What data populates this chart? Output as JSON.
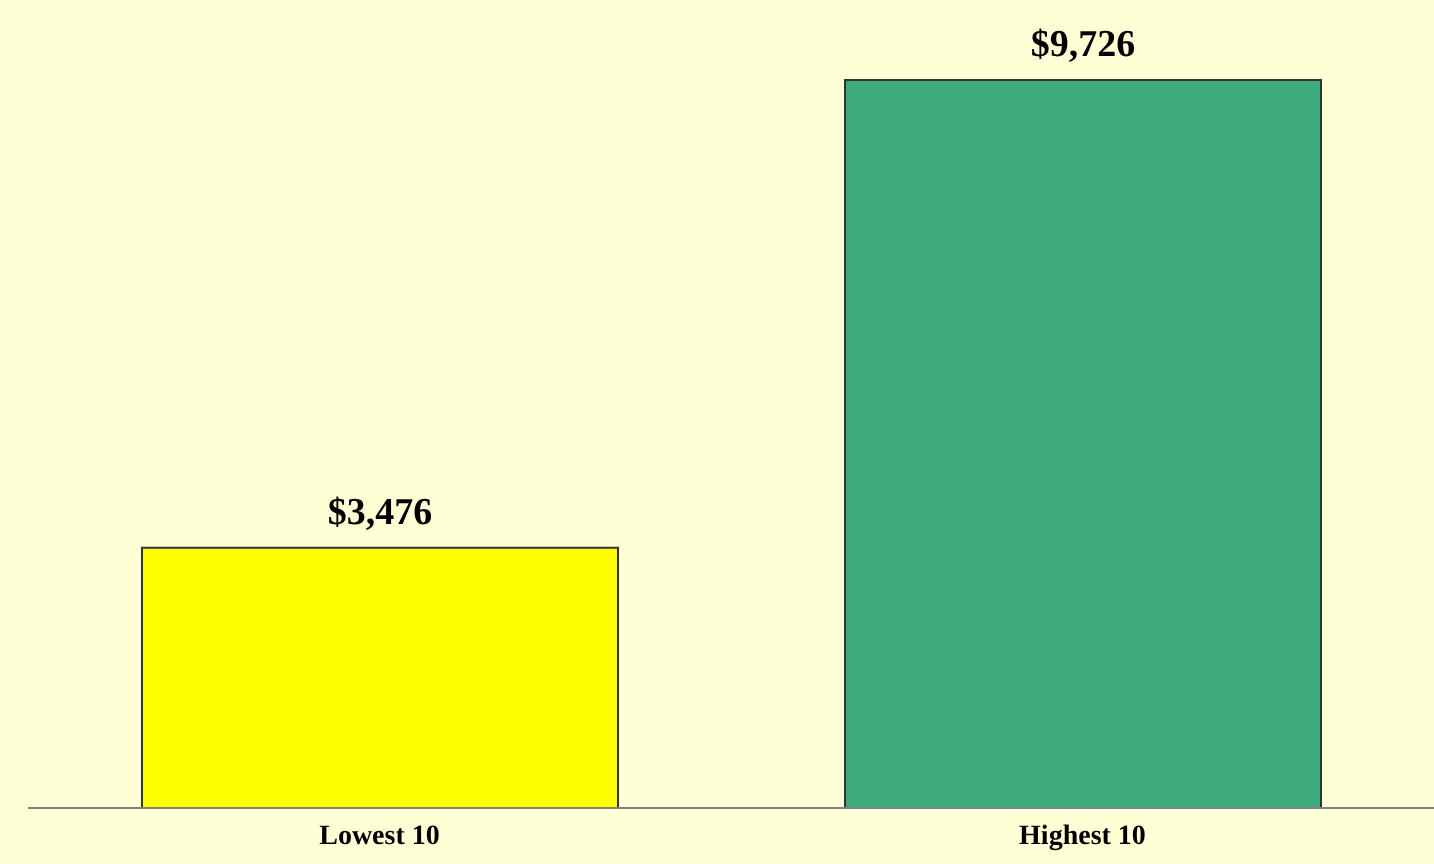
{
  "chart_data": {
    "type": "bar",
    "categories": [
      "Lowest 10",
      "Highest 10"
    ],
    "values": [
      3476,
      9726
    ],
    "colors": [
      "#ffff00",
      "#3daa7c"
    ],
    "value_labels": [
      "$3,476",
      "$9,726"
    ]
  }
}
